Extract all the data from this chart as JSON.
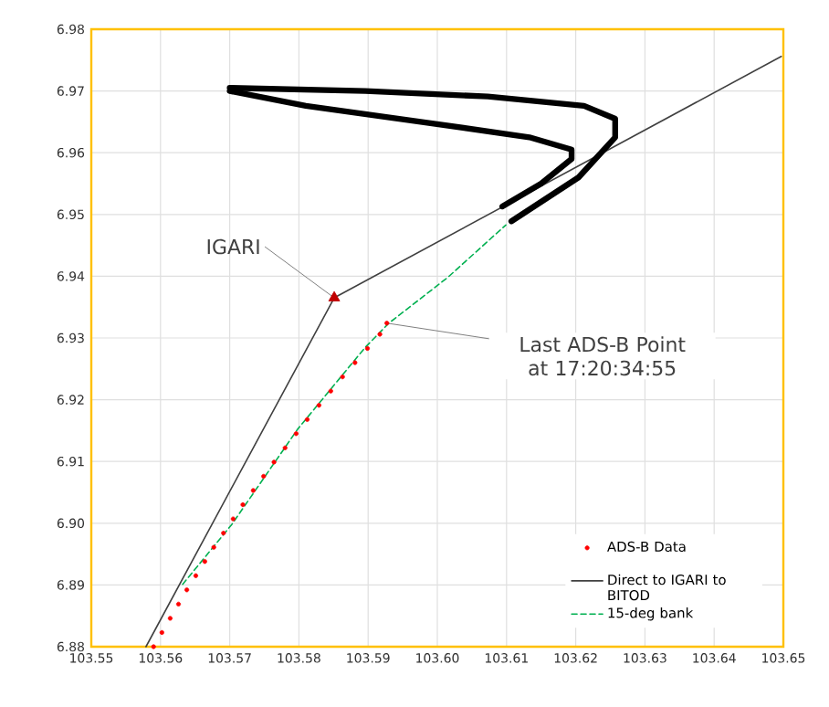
{
  "chart_data": {
    "type": "line",
    "xlim": [
      103.55,
      103.65
    ],
    "ylim": [
      6.88,
      6.98
    ],
    "xticks": [
      {
        "value": 103.55,
        "label": "103.55"
      },
      {
        "value": 103.56,
        "label": "103.56"
      },
      {
        "value": 103.57,
        "label": "103.57"
      },
      {
        "value": 103.58,
        "label": "103.58"
      },
      {
        "value": 103.59,
        "label": "103.59"
      },
      {
        "value": 103.6,
        "label": "103.60"
      },
      {
        "value": 103.61,
        "label": "103.61"
      },
      {
        "value": 103.62,
        "label": "103.62"
      },
      {
        "value": 103.63,
        "label": "103.63"
      },
      {
        "value": 103.64,
        "label": "103.64"
      },
      {
        "value": 103.65,
        "label": "103.65"
      }
    ],
    "yticks": [
      {
        "value": 6.88,
        "label": "6.88"
      },
      {
        "value": 6.89,
        "label": "6.89"
      },
      {
        "value": 6.9,
        "label": "6.90"
      },
      {
        "value": 6.91,
        "label": "6.91"
      },
      {
        "value": 6.92,
        "label": "6.92"
      },
      {
        "value": 6.93,
        "label": "6.93"
      },
      {
        "value": 6.94,
        "label": "6.94"
      },
      {
        "value": 6.95,
        "label": "6.95"
      },
      {
        "value": 6.96,
        "label": "6.96"
      },
      {
        "value": 6.97,
        "label": "6.97"
      },
      {
        "value": 6.98,
        "label": "6.98"
      }
    ],
    "grid": true,
    "legend": "bottom right",
    "series": [
      {
        "name": "ADS-B Data",
        "type": "scatter",
        "marker": "circle",
        "color": "#ff0000",
        "x": [
          103.559,
          103.5602,
          103.5614,
          103.5626,
          103.5638,
          103.5651,
          103.5664,
          103.5677,
          103.5691,
          103.5705,
          103.5719,
          103.5734,
          103.5749,
          103.5764,
          103.578,
          103.5796,
          103.5812,
          103.5829,
          103.5846,
          103.5863,
          103.5881,
          103.5899,
          103.5917,
          103.5927
        ],
        "values": [
          6.88,
          6.8823,
          6.8846,
          6.8869,
          6.8892,
          6.8915,
          6.8938,
          6.8961,
          6.8984,
          6.9007,
          6.903,
          6.9053,
          6.9076,
          6.9099,
          6.9122,
          6.9145,
          6.9168,
          6.9191,
          6.9214,
          6.9237,
          6.926,
          6.9283,
          6.9306,
          6.9324
        ]
      },
      {
        "name": "Direct to IGARI to BITOD",
        "color": "#404040",
        "x": [
          103.5579,
          103.5851,
          103.6497
        ],
        "values": [
          6.88,
          6.9365,
          6.9756
        ]
      },
      {
        "type": "scatter",
        "marker": "triangle",
        "color": "#c00000",
        "x": [
          103.5851
        ],
        "values": [
          6.9365
        ]
      },
      {
        "name": "15-deg bank",
        "line_style": "dashed",
        "color": "#00b050",
        "x": [
          103.5632,
          103.5703,
          103.5798,
          103.5896,
          103.593,
          103.6015,
          103.6099
        ],
        "values": [
          6.8901,
          6.8998,
          6.9152,
          6.9285,
          6.9324,
          6.9398,
          6.9483
        ]
      },
      {
        "color": "#000000",
        "x": [
          103.6094,
          103.615,
          103.6194,
          103.6194,
          103.6133,
          103.5983,
          103.581,
          103.57
        ],
        "values": [
          6.9513,
          6.955,
          6.959,
          6.9605,
          6.9625,
          6.9649,
          6.9676,
          6.97
        ]
      },
      {
        "color": "#000000",
        "x": [
          103.6107,
          103.6204,
          103.6257,
          103.6257,
          103.6212,
          103.6073,
          103.5896,
          103.57
        ],
        "values": [
          6.9489,
          6.956,
          6.9625,
          6.9655,
          6.9676,
          6.9691,
          6.97,
          6.9705
        ]
      }
    ],
    "annotations": [
      {
        "text": "IGARI",
        "x": 103.5851,
        "y": 6.9365
      },
      {
        "text": "Last ADS-B Point at 17:20:34:55",
        "x": 103.5927,
        "y": 6.9324
      }
    ]
  }
}
